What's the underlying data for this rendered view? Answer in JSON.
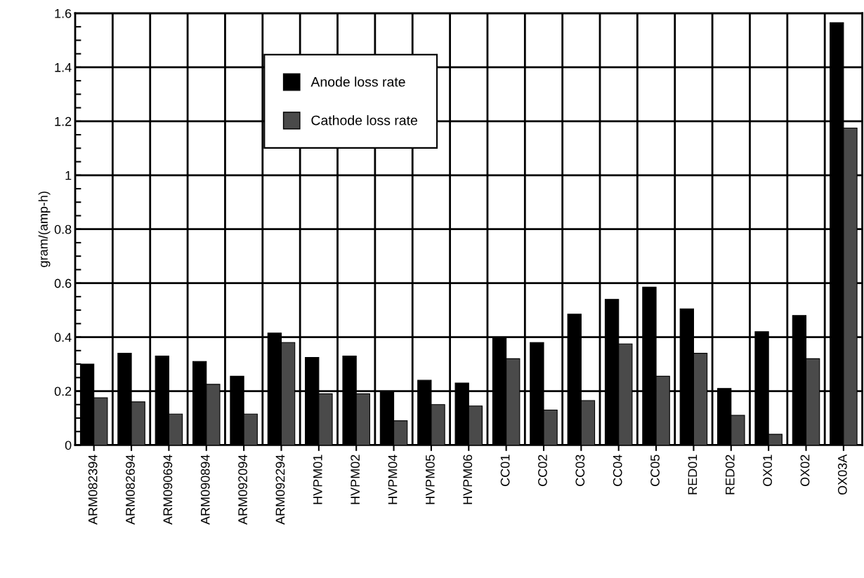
{
  "chart_data": {
    "type": "bar",
    "ylabel": "gram/(amp-h)",
    "categories": [
      "ARM082394",
      "ARM082694",
      "ARM090694",
      "ARM090894",
      "ARM092094",
      "ARM092294",
      "HVPM01",
      "HVPM02",
      "HVPM04",
      "HVPM05",
      "HVPM06",
      "CC01",
      "CC02",
      "CC03",
      "CC04",
      "CC05",
      "RED01",
      "RED02",
      "OX01",
      "OX02",
      "OX03A"
    ],
    "series": [
      {
        "name": "Anode loss rate",
        "color": "#000000",
        "values": [
          0.3,
          0.34,
          0.33,
          0.31,
          0.255,
          0.415,
          0.325,
          0.33,
          0.2,
          0.24,
          0.23,
          0.4,
          0.38,
          0.485,
          0.54,
          0.585,
          0.505,
          0.21,
          0.42,
          0.48,
          1.565
        ]
      },
      {
        "name": "Cathode loss rate",
        "color": "#4a4a4a",
        "values": [
          0.175,
          0.16,
          0.115,
          0.225,
          0.115,
          0.38,
          0.19,
          0.19,
          0.09,
          0.15,
          0.145,
          0.32,
          0.13,
          0.165,
          0.375,
          0.255,
          0.34,
          0.11,
          0.04,
          0.32,
          1.175
        ]
      }
    ],
    "ylim": [
      0,
      1.6
    ],
    "yticks": [
      0,
      {
        "value": 0.05,
        "label": null
      },
      {
        "value": 0.1,
        "label": null
      },
      {
        "value": 0.15,
        "label": null
      },
      0.2,
      {
        "value": 0.25,
        "label": null
      },
      {
        "value": 0.3,
        "label": null
      },
      {
        "value": 0.35,
        "label": null
      },
      0.4,
      {
        "value": 0.45,
        "label": null
      },
      {
        "value": 0.5,
        "label": null
      },
      {
        "value": 0.55,
        "label": null
      },
      0.6,
      {
        "value": 0.65,
        "label": null
      },
      {
        "value": 0.7,
        "label": null
      },
      {
        "value": 0.75,
        "label": null
      },
      0.8,
      {
        "value": 0.85,
        "label": null
      },
      {
        "value": 0.9,
        "label": null
      },
      {
        "value": 0.95,
        "label": null
      },
      1,
      {
        "value": 1.05,
        "label": null
      },
      {
        "value": 1.1,
        "label": null
      },
      {
        "value": 1.15,
        "label": null
      },
      1.2,
      {
        "value": 1.25,
        "label": null
      },
      {
        "value": 1.3,
        "label": null
      },
      {
        "value": 1.35,
        "label": null
      },
      1.4,
      {
        "value": 1.45,
        "label": null
      },
      {
        "value": 1.5,
        "label": null
      },
      {
        "value": 1.55,
        "label": null
      },
      1.6
    ],
    "grid": true,
    "legend": "top"
  }
}
